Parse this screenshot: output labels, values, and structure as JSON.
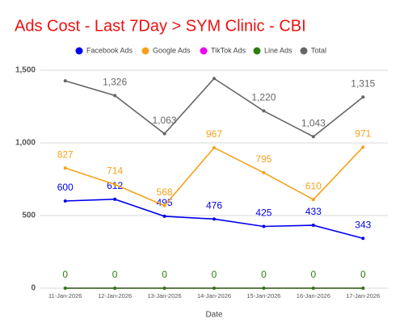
{
  "chart_data": {
    "type": "line",
    "title": "Ads Cost - Last 7Day > SYM Clinic - CBI",
    "x_label": "Date",
    "categories": [
      "11-Jan-2026",
      "12-Jan-2026",
      "13-Jan-2026",
      "14-Jan-2026",
      "15-Jan-2026",
      "16-Jan-2026",
      "17-Jan-2026"
    ],
    "ylim": [
      0,
      1500
    ],
    "yticks": [
      0,
      500,
      {
        "value": 1000,
        "label": "1,000"
      },
      {
        "value": 1500,
        "label": "1,500"
      }
    ],
    "grid": true,
    "legend": "top",
    "series": [
      {
        "name": "Facebook Ads",
        "color": "#0000ee",
        "values": [
          600,
          612,
          495,
          476,
          425,
          433,
          343
        ],
        "show_labels": true
      },
      {
        "name": "Google Ads",
        "color": "#f6a11a",
        "values": [
          827,
          714,
          568,
          967,
          795,
          610,
          971
        ],
        "show_labels": true
      },
      {
        "name": "TikTok Ads",
        "color": "#ee00ee",
        "values": [
          0,
          0,
          0,
          0,
          0,
          0,
          0
        ],
        "show_labels": false
      },
      {
        "name": "Line Ads",
        "color": "#2e7d0f",
        "values": [
          0,
          0,
          0,
          0,
          0,
          0,
          0
        ],
        "show_labels": true
      },
      {
        "name": "Total",
        "color": "#666666",
        "values": [
          1427,
          1326,
          1063,
          1443,
          1220,
          1043,
          1315
        ],
        "show_labels": true,
        "value_labels": [
          null,
          "1,326",
          "1,063",
          null,
          "1,220",
          "1,043",
          "1,315"
        ]
      }
    ]
  }
}
